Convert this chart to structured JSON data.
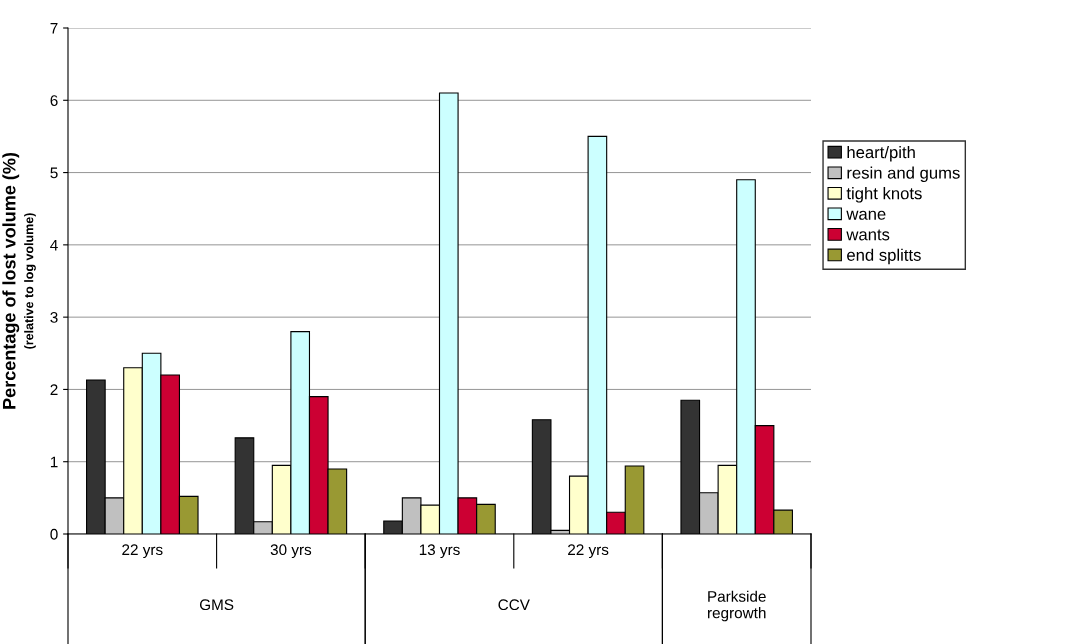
{
  "chart_data": {
    "type": "bar",
    "ylabel": "Percentage of lost volume (%)",
    "annotations": [
      "(relative to log volume)",
      "GMS",
      "CCV",
      "Parkside\nregrowth"
    ],
    "categories": [
      "22 yrs",
      "30 yrs",
      "13 yrs",
      "22 yrs",
      null
    ],
    "series": [
      {
        "name": "heart/pith",
        "color": "#333333",
        "values": [
          2.13,
          1.33,
          0.18,
          1.58,
          1.85
        ]
      },
      {
        "name": "resin and gums",
        "color": "#c0c0c0",
        "values": [
          0.5,
          0.17,
          0.5,
          0.05,
          0.57
        ]
      },
      {
        "name": "tight knots",
        "color": "#ffffcc",
        "values": [
          2.3,
          0.95,
          0.4,
          0.8,
          0.95
        ]
      },
      {
        "name": "wane",
        "color": "#ccffff",
        "values": [
          2.5,
          2.8,
          6.1,
          5.5,
          4.9
        ]
      },
      {
        "name": "wants",
        "color": "#cc0033",
        "values": [
          2.2,
          1.9,
          0.5,
          0.3,
          1.5
        ]
      },
      {
        "name": "end splitts",
        "color": "#999933",
        "values": [
          0.52,
          0.9,
          0.41,
          0.94,
          0.33
        ]
      }
    ],
    "ylim": [
      0,
      7
    ],
    "yticks": [
      0,
      1,
      2,
      3,
      4,
      5,
      6,
      7
    ],
    "grid": "y",
    "legend": "right"
  }
}
